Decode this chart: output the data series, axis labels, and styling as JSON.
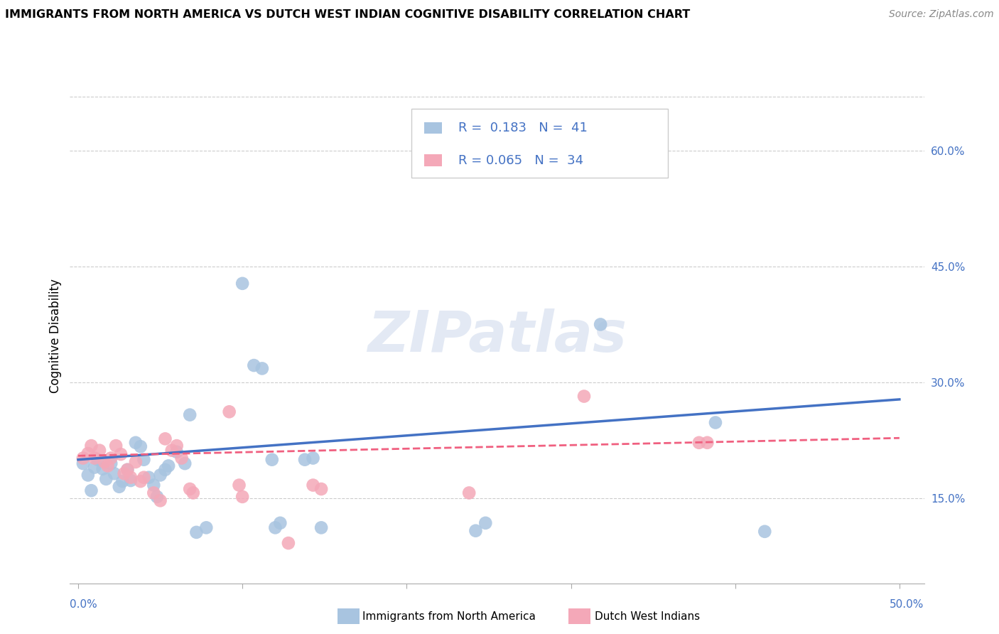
{
  "title": "IMMIGRANTS FROM NORTH AMERICA VS DUTCH WEST INDIAN COGNITIVE DISABILITY CORRELATION CHART",
  "source": "Source: ZipAtlas.com",
  "ylabel": "Cognitive Disability",
  "right_yticks": [
    "60.0%",
    "45.0%",
    "30.0%",
    "15.0%"
  ],
  "right_ytick_vals": [
    0.6,
    0.45,
    0.3,
    0.15
  ],
  "xlim": [
    -0.005,
    0.515
  ],
  "ylim": [
    0.04,
    0.68
  ],
  "blue_R": "0.183",
  "blue_N": "41",
  "pink_R": "0.065",
  "pink_N": "34",
  "watermark": "ZIPatlas",
  "blue_color": "#a8c4e0",
  "pink_color": "#f4a8b8",
  "blue_line_color": "#4472c4",
  "pink_line_color": "#f06080",
  "legend_box_color": "#e8e8e8",
  "grid_color": "#cccccc",
  "axis_label_color": "#4472c4",
  "blue_scatter": [
    [
      0.003,
      0.195
    ],
    [
      0.006,
      0.18
    ],
    [
      0.008,
      0.16
    ],
    [
      0.01,
      0.19
    ],
    [
      0.012,
      0.2
    ],
    [
      0.015,
      0.188
    ],
    [
      0.017,
      0.175
    ],
    [
      0.02,
      0.195
    ],
    [
      0.022,
      0.182
    ],
    [
      0.025,
      0.165
    ],
    [
      0.027,
      0.172
    ],
    [
      0.03,
      0.187
    ],
    [
      0.032,
      0.173
    ],
    [
      0.035,
      0.222
    ],
    [
      0.038,
      0.217
    ],
    [
      0.04,
      0.2
    ],
    [
      0.043,
      0.177
    ],
    [
      0.046,
      0.167
    ],
    [
      0.048,
      0.152
    ],
    [
      0.05,
      0.18
    ],
    [
      0.053,
      0.187
    ],
    [
      0.055,
      0.192
    ],
    [
      0.06,
      0.21
    ],
    [
      0.065,
      0.195
    ],
    [
      0.068,
      0.258
    ],
    [
      0.072,
      0.106
    ],
    [
      0.078,
      0.112
    ],
    [
      0.1,
      0.428
    ],
    [
      0.107,
      0.322
    ],
    [
      0.112,
      0.318
    ],
    [
      0.118,
      0.2
    ],
    [
      0.12,
      0.112
    ],
    [
      0.123,
      0.118
    ],
    [
      0.138,
      0.2
    ],
    [
      0.143,
      0.202
    ],
    [
      0.148,
      0.112
    ],
    [
      0.242,
      0.108
    ],
    [
      0.248,
      0.118
    ],
    [
      0.318,
      0.375
    ],
    [
      0.388,
      0.248
    ],
    [
      0.418,
      0.107
    ]
  ],
  "pink_scatter": [
    [
      0.003,
      0.202
    ],
    [
      0.006,
      0.208
    ],
    [
      0.008,
      0.218
    ],
    [
      0.01,
      0.202
    ],
    [
      0.013,
      0.212
    ],
    [
      0.016,
      0.197
    ],
    [
      0.018,
      0.192
    ],
    [
      0.02,
      0.202
    ],
    [
      0.023,
      0.218
    ],
    [
      0.026,
      0.207
    ],
    [
      0.028,
      0.182
    ],
    [
      0.03,
      0.187
    ],
    [
      0.032,
      0.177
    ],
    [
      0.035,
      0.197
    ],
    [
      0.038,
      0.172
    ],
    [
      0.04,
      0.177
    ],
    [
      0.046,
      0.157
    ],
    [
      0.05,
      0.147
    ],
    [
      0.053,
      0.227
    ],
    [
      0.057,
      0.212
    ],
    [
      0.06,
      0.218
    ],
    [
      0.063,
      0.202
    ],
    [
      0.068,
      0.162
    ],
    [
      0.07,
      0.157
    ],
    [
      0.092,
      0.262
    ],
    [
      0.098,
      0.167
    ],
    [
      0.1,
      0.152
    ],
    [
      0.128,
      0.092
    ],
    [
      0.143,
      0.167
    ],
    [
      0.148,
      0.162
    ],
    [
      0.238,
      0.157
    ],
    [
      0.308,
      0.282
    ],
    [
      0.378,
      0.222
    ],
    [
      0.383,
      0.222
    ]
  ],
  "blue_trend_x": [
    0.0,
    0.5
  ],
  "blue_trend_y": [
    0.2,
    0.278
  ],
  "pink_trend_x": [
    0.0,
    0.5
  ],
  "pink_trend_y": [
    0.205,
    0.228
  ]
}
